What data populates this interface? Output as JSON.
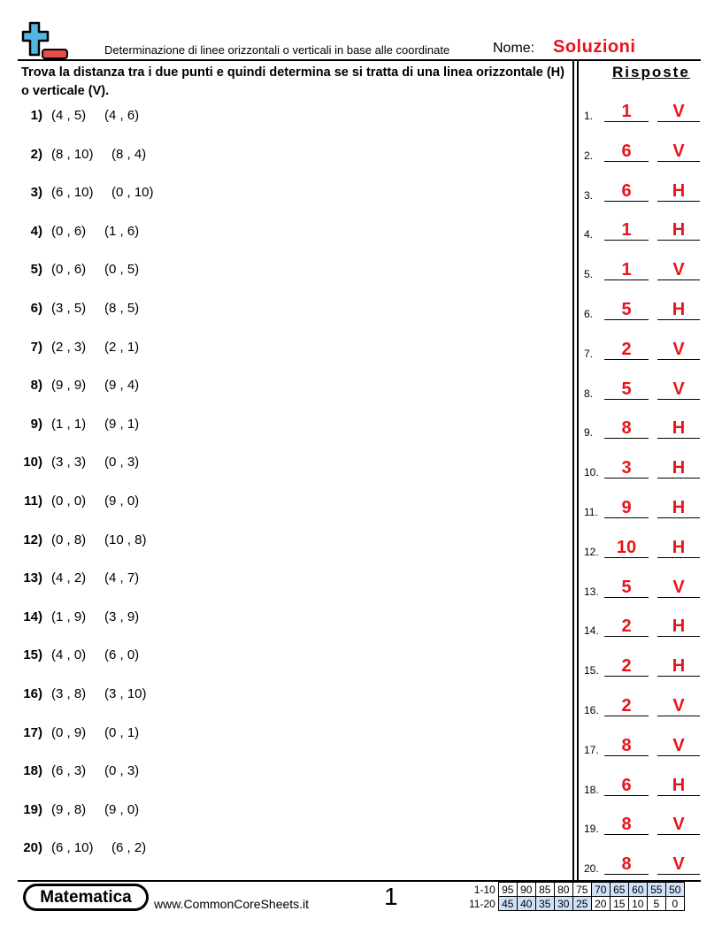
{
  "header": {
    "subtitle": "Determinazione di linee orizzontali o verticali in base alle coordinate",
    "name_label": "Nome:",
    "name_value": "Soluzioni",
    "logo_colors": {
      "plus": "#4fb8e0",
      "minus": "#e84c4c"
    }
  },
  "instructions": "Trova la distanza tra i due punti e quindi determina se si tratta di una linea orizzontale (H) o verticale (V).",
  "answers_title": "Risposte",
  "problems": [
    {
      "n": "1)",
      "a": "(4 , 5)",
      "b": "(4 , 6)"
    },
    {
      "n": "2)",
      "a": "(8 , 10)",
      "b": "(8 , 4)"
    },
    {
      "n": "3)",
      "a": "(6 , 10)",
      "b": "(0 , 10)"
    },
    {
      "n": "4)",
      "a": "(0 , 6)",
      "b": "(1 , 6)"
    },
    {
      "n": "5)",
      "a": "(0 , 6)",
      "b": "(0 , 5)"
    },
    {
      "n": "6)",
      "a": "(3 , 5)",
      "b": "(8 , 5)"
    },
    {
      "n": "7)",
      "a": "(2 , 3)",
      "b": "(2 , 1)"
    },
    {
      "n": "8)",
      "a": "(9 , 9)",
      "b": "(9 , 4)"
    },
    {
      "n": "9)",
      "a": "(1 , 1)",
      "b": "(9 , 1)"
    },
    {
      "n": "10)",
      "a": "(3 , 3)",
      "b": "(0 , 3)"
    },
    {
      "n": "11)",
      "a": "(0 , 0)",
      "b": "(9 , 0)"
    },
    {
      "n": "12)",
      "a": "(0 , 8)",
      "b": "(10 , 8)"
    },
    {
      "n": "13)",
      "a": "(4 , 2)",
      "b": "(4 , 7)"
    },
    {
      "n": "14)",
      "a": "(1 , 9)",
      "b": "(3 , 9)"
    },
    {
      "n": "15)",
      "a": "(4 , 0)",
      "b": "(6 , 0)"
    },
    {
      "n": "16)",
      "a": "(3 , 8)",
      "b": "(3 , 10)"
    },
    {
      "n": "17)",
      "a": "(0 , 9)",
      "b": "(0 , 1)"
    },
    {
      "n": "18)",
      "a": "(6 , 3)",
      "b": "(0 , 3)"
    },
    {
      "n": "19)",
      "a": "(9 , 8)",
      "b": "(9 , 0)"
    },
    {
      "n": "20)",
      "a": "(6 , 10)",
      "b": "(6 , 2)"
    }
  ],
  "answers": [
    {
      "n": "1.",
      "d": "1",
      "t": "V"
    },
    {
      "n": "2.",
      "d": "6",
      "t": "V"
    },
    {
      "n": "3.",
      "d": "6",
      "t": "H"
    },
    {
      "n": "4.",
      "d": "1",
      "t": "H"
    },
    {
      "n": "5.",
      "d": "1",
      "t": "V"
    },
    {
      "n": "6.",
      "d": "5",
      "t": "H"
    },
    {
      "n": "7.",
      "d": "2",
      "t": "V"
    },
    {
      "n": "8.",
      "d": "5",
      "t": "V"
    },
    {
      "n": "9.",
      "d": "8",
      "t": "H"
    },
    {
      "n": "10.",
      "d": "3",
      "t": "H"
    },
    {
      "n": "11.",
      "d": "9",
      "t": "H"
    },
    {
      "n": "12.",
      "d": "10",
      "t": "H"
    },
    {
      "n": "13.",
      "d": "5",
      "t": "V"
    },
    {
      "n": "14.",
      "d": "2",
      "t": "H"
    },
    {
      "n": "15.",
      "d": "2",
      "t": "H"
    },
    {
      "n": "16.",
      "d": "2",
      "t": "V"
    },
    {
      "n": "17.",
      "d": "8",
      "t": "V"
    },
    {
      "n": "18.",
      "d": "6",
      "t": "H"
    },
    {
      "n": "19.",
      "d": "8",
      "t": "V"
    },
    {
      "n": "20.",
      "d": "8",
      "t": "V"
    }
  ],
  "footer": {
    "brand": "Matematica",
    "site": "www.CommonCoreSheets.it",
    "page": "1",
    "score_rows": [
      {
        "label": "1-10",
        "values": [
          "95",
          "90",
          "85",
          "80",
          "75",
          "70",
          "65",
          "60",
          "55",
          "50"
        ],
        "highlight": [
          false,
          false,
          false,
          false,
          false,
          true,
          true,
          true,
          true,
          true
        ]
      },
      {
        "label": "11-20",
        "values": [
          "45",
          "40",
          "35",
          "30",
          "25",
          "20",
          "15",
          "10",
          "5",
          "0"
        ],
        "highlight": [
          true,
          true,
          true,
          true,
          true,
          false,
          false,
          false,
          false,
          false
        ]
      }
    ]
  },
  "colors": {
    "answer": "#e8141c",
    "score_highlight": "#cfe0f7"
  }
}
